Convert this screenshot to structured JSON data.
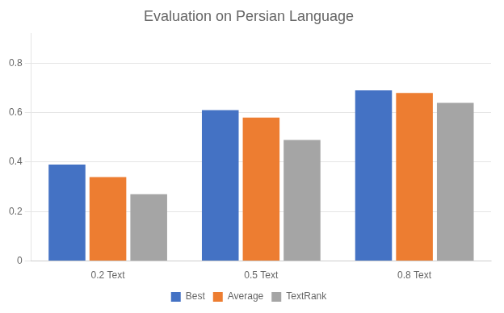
{
  "chart_data": {
    "type": "bar",
    "title": "Evaluation on Persian Language",
    "categories": [
      "0.2 Text",
      "0.5 Text",
      "0.8 Text"
    ],
    "series": [
      {
        "name": "Best",
        "color": "#4472C4",
        "values": [
          0.39,
          0.61,
          0.69
        ]
      },
      {
        "name": "Average",
        "color": "#ED7D31",
        "values": [
          0.34,
          0.58,
          0.68
        ]
      },
      {
        "name": "TextRank",
        "color": "#A5A5A5",
        "values": [
          0.27,
          0.49,
          0.64
        ]
      }
    ],
    "ylim": [
      0,
      0.92
    ],
    "yticks": [
      0,
      0.2,
      0.4,
      0.6,
      0.8
    ],
    "grid": true,
    "legend": "bottom"
  }
}
